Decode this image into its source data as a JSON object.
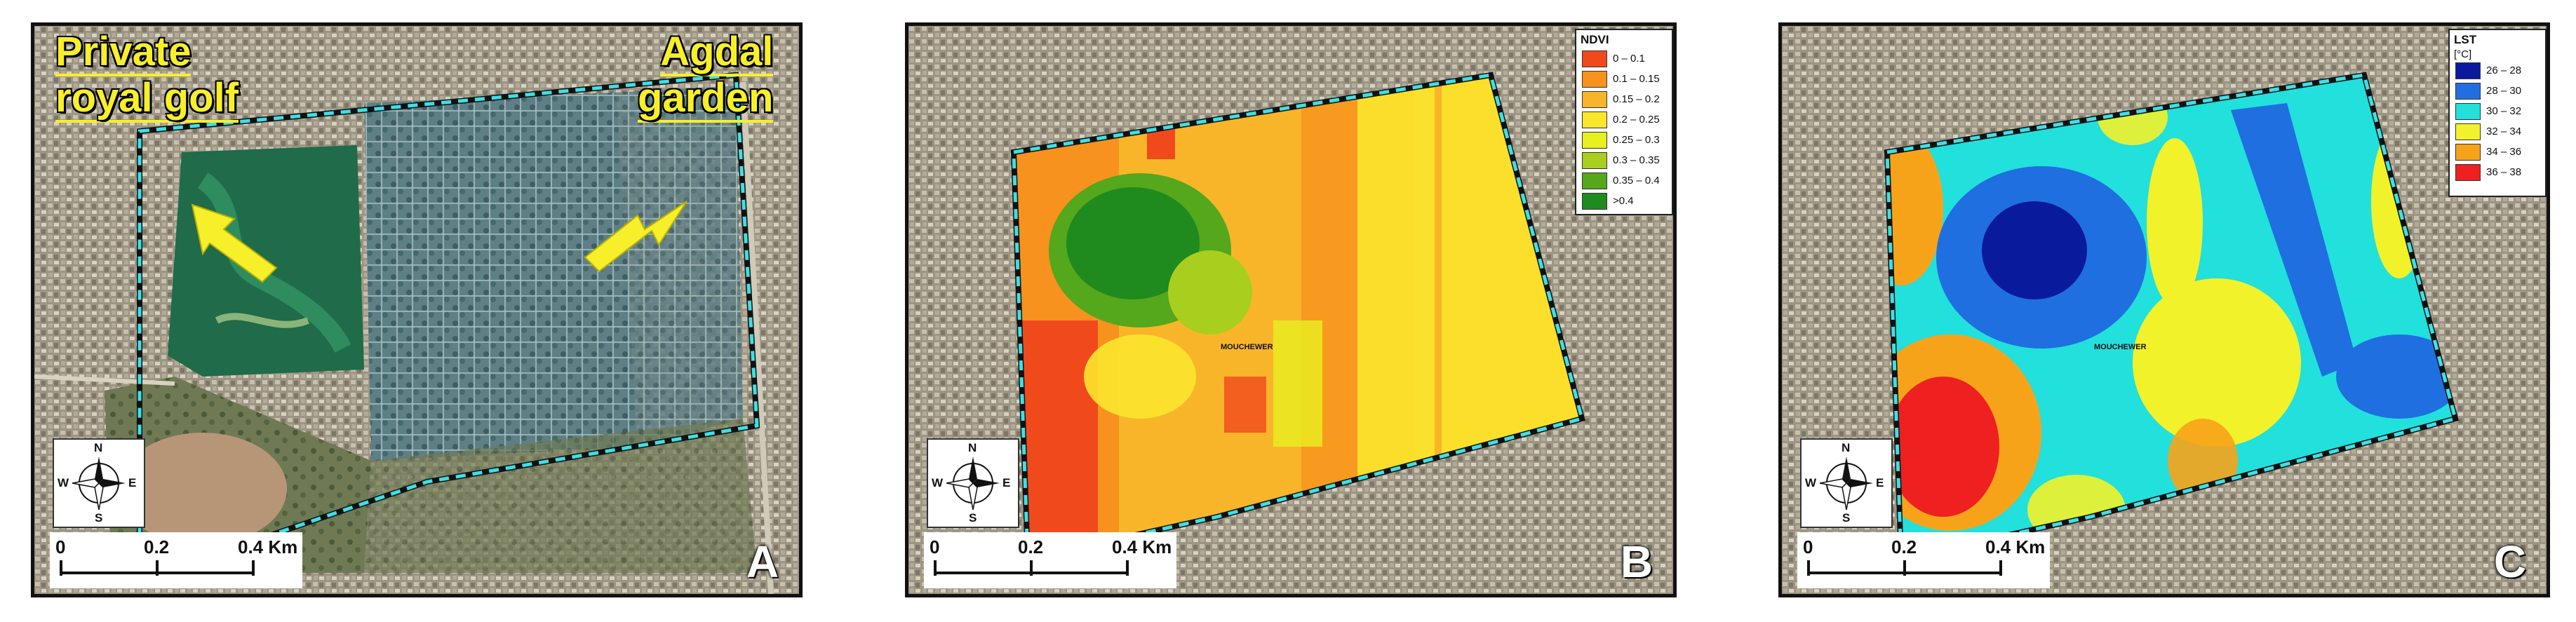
{
  "panels": {
    "a": {
      "letter": "A",
      "label_left": [
        "Private",
        "royal golf"
      ],
      "label_right": [
        "Agdal",
        "garden"
      ]
    },
    "b": {
      "letter": "B",
      "map_tag": "MOUCHEWER",
      "legend": {
        "title": "NDVI",
        "items": [
          {
            "label": "0 – 0.1",
            "color": "#f04a1c"
          },
          {
            "label": "0.1 – 0.15",
            "color": "#f7921e"
          },
          {
            "label": "0.15 – 0.2",
            "color": "#f9b52a"
          },
          {
            "label": "0.2 – 0.25",
            "color": "#fbe62c"
          },
          {
            "label": "0.25 – 0.3",
            "color": "#e8f020"
          },
          {
            "label": "0.3 – 0.35",
            "color": "#a8cf1d"
          },
          {
            "label": "0.35 – 0.4",
            "color": "#55a71c"
          },
          {
            "label": ">0.4",
            "color": "#1f8a1e"
          }
        ]
      }
    },
    "c": {
      "letter": "C",
      "map_tag": "MOUCHEWER",
      "legend": {
        "title": "LST",
        "unit": "[°C]",
        "items": [
          {
            "label": "26 – 28",
            "color": "#0a1a9c"
          },
          {
            "label": "28 – 30",
            "color": "#1f6fe0"
          },
          {
            "label": "30 – 32",
            "color": "#22e0dc"
          },
          {
            "label": "32 – 34",
            "color": "#f2f22a"
          },
          {
            "label": "34 – 36",
            "color": "#f7a31a"
          },
          {
            "label": "36 – 38",
            "color": "#ee2020"
          }
        ]
      }
    }
  },
  "north_arrow": {
    "n": "N",
    "s": "S",
    "e": "E",
    "w": "W"
  },
  "scale_bar": {
    "ticks": [
      "0",
      "0.2",
      "0.4 Km"
    ]
  },
  "colors": {
    "boundary": "#3ee0e6",
    "label_yellow": "#f7ef2a"
  }
}
